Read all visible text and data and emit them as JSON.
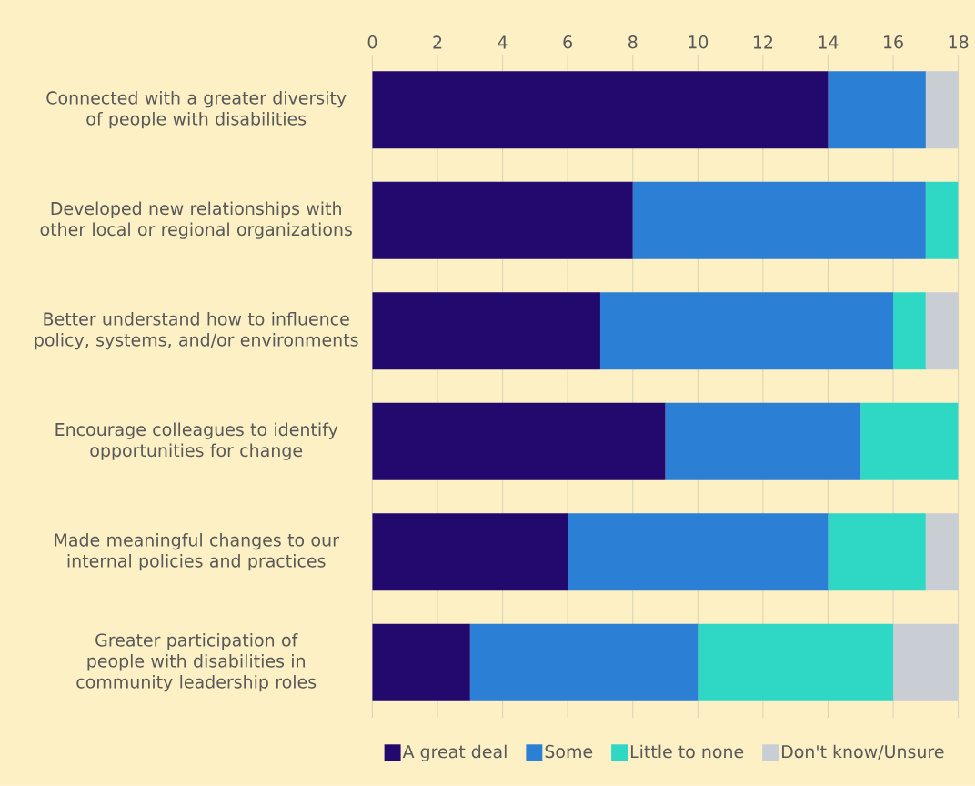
{
  "chart_data": {
    "type": "bar",
    "orientation": "horizontal",
    "stacked": true,
    "categories": [
      "Connected with a greater diversity of people with disabilities",
      "Developed new relationships with other local or regional organizations",
      "Better understand how to influence policy, systems, and/or environments",
      "Encourage colleagues to identify opportunities for change",
      "Made meaningful changes to our internal policies and practices",
      "Greater participation of people with disabilities in community leadership roles"
    ],
    "series": [
      {
        "name": "A great deal",
        "color": "#22096e",
        "values": [
          14,
          8,
          7,
          9,
          6,
          3
        ]
      },
      {
        "name": "Some",
        "color": "#2b7fd4",
        "values": [
          3,
          9,
          9,
          6,
          8,
          7
        ]
      },
      {
        "name": "Little to none",
        "color": "#2ed8c4",
        "values": [
          0,
          1,
          1,
          3,
          3,
          6
        ]
      },
      {
        "name": "Don't know/Unsure",
        "color": "#c9cdd4",
        "values": [
          1,
          0,
          1,
          0,
          1,
          2
        ]
      }
    ],
    "xlim": [
      0,
      18
    ],
    "xticks": [
      0,
      2,
      4,
      6,
      8,
      10,
      12,
      14,
      16,
      18
    ],
    "grid": "x",
    "legend": "bottom"
  }
}
